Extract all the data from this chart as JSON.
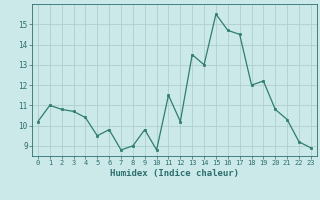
{
  "x": [
    0,
    1,
    2,
    3,
    4,
    5,
    6,
    7,
    8,
    9,
    10,
    11,
    12,
    13,
    14,
    15,
    16,
    17,
    18,
    19,
    20,
    21,
    22,
    23
  ],
  "y": [
    10.2,
    11.0,
    10.8,
    10.7,
    10.4,
    9.5,
    9.8,
    8.8,
    9.0,
    9.8,
    8.8,
    11.5,
    10.2,
    13.5,
    13.0,
    15.5,
    14.7,
    14.5,
    12.0,
    12.2,
    10.8,
    10.3,
    9.2,
    8.9
  ],
  "xlabel": "Humidex (Indice chaleur)",
  "ylim": [
    8.5,
    16.0
  ],
  "xlim": [
    -0.5,
    23.5
  ],
  "line_color": "#2e7d6e",
  "marker_color": "#2e7d6e",
  "bg_color": "#cce9e9",
  "grid_color": "#b0cece",
  "tick_color": "#2e6e6e",
  "label_color": "#2e6e6e",
  "yticks": [
    9,
    10,
    11,
    12,
    13,
    14,
    15
  ],
  "xticks": [
    0,
    1,
    2,
    3,
    4,
    5,
    6,
    7,
    8,
    9,
    10,
    11,
    12,
    13,
    14,
    15,
    16,
    17,
    18,
    19,
    20,
    21,
    22,
    23
  ]
}
